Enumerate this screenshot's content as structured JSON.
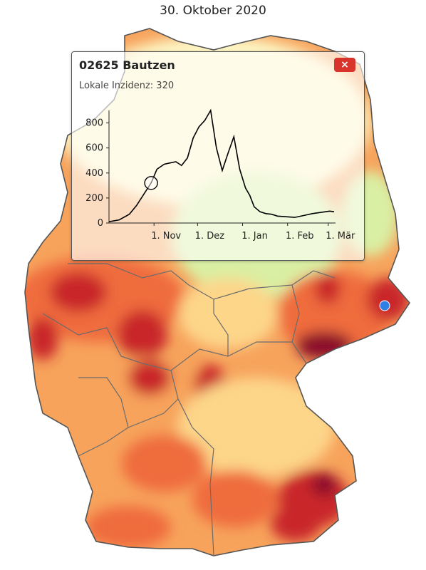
{
  "date_title": "30. Oktober 2020",
  "popup": {
    "title": "02625 Bautzen",
    "subtitle": "Lokale Inzidenz: 320",
    "close_label": "×"
  },
  "colors": {
    "very_high": "#8b0a2a",
    "high": "#c9262c",
    "elevated": "#ef6c3c",
    "moderate": "#f7a35c",
    "low": "#fdd68a",
    "very_low": "#fdf5c3",
    "minimal": "#d9efa3",
    "marker": "#2f7fe6"
  },
  "chart_data": {
    "type": "line",
    "title": "",
    "xlabel": "",
    "ylabel": "",
    "ylim": [
      0,
      900
    ],
    "yticks": [
      "0",
      "200",
      "400",
      "600",
      "800"
    ],
    "xtick_labels": [
      "1. Nov",
      "1. Dez",
      "1. Jan",
      "1. Feb",
      "1. Mär"
    ],
    "series": [
      {
        "x": [
          "2020-10-01",
          "2020-10-08",
          "2020-10-15",
          "2020-10-20",
          "2020-10-25",
          "2020-10-30",
          "2020-11-03",
          "2020-11-08",
          "2020-11-12",
          "2020-11-16",
          "2020-11-20",
          "2020-11-24",
          "2020-11-28",
          "2020-12-02",
          "2020-12-06",
          "2020-12-10",
          "2020-12-14",
          "2020-12-18",
          "2020-12-22",
          "2020-12-26",
          "2020-12-30",
          "2021-01-03",
          "2021-01-06",
          "2021-01-09",
          "2021-01-13",
          "2021-01-17",
          "2021-01-21",
          "2021-01-25",
          "2021-01-31",
          "2021-02-06",
          "2021-02-12",
          "2021-02-18",
          "2021-02-24",
          "2021-03-02",
          "2021-03-05"
        ],
        "y": [
          10,
          25,
          70,
          140,
          230,
          320,
          430,
          470,
          480,
          490,
          460,
          520,
          680,
          770,
          820,
          900,
          600,
          420,
          560,
          690,
          430,
          280,
          220,
          130,
          90,
          75,
          70,
          55,
          50,
          45,
          60,
          75,
          85,
          95,
          90
        ]
      }
    ],
    "current_marker": {
      "x": "2020-10-30",
      "y": 320
    }
  }
}
